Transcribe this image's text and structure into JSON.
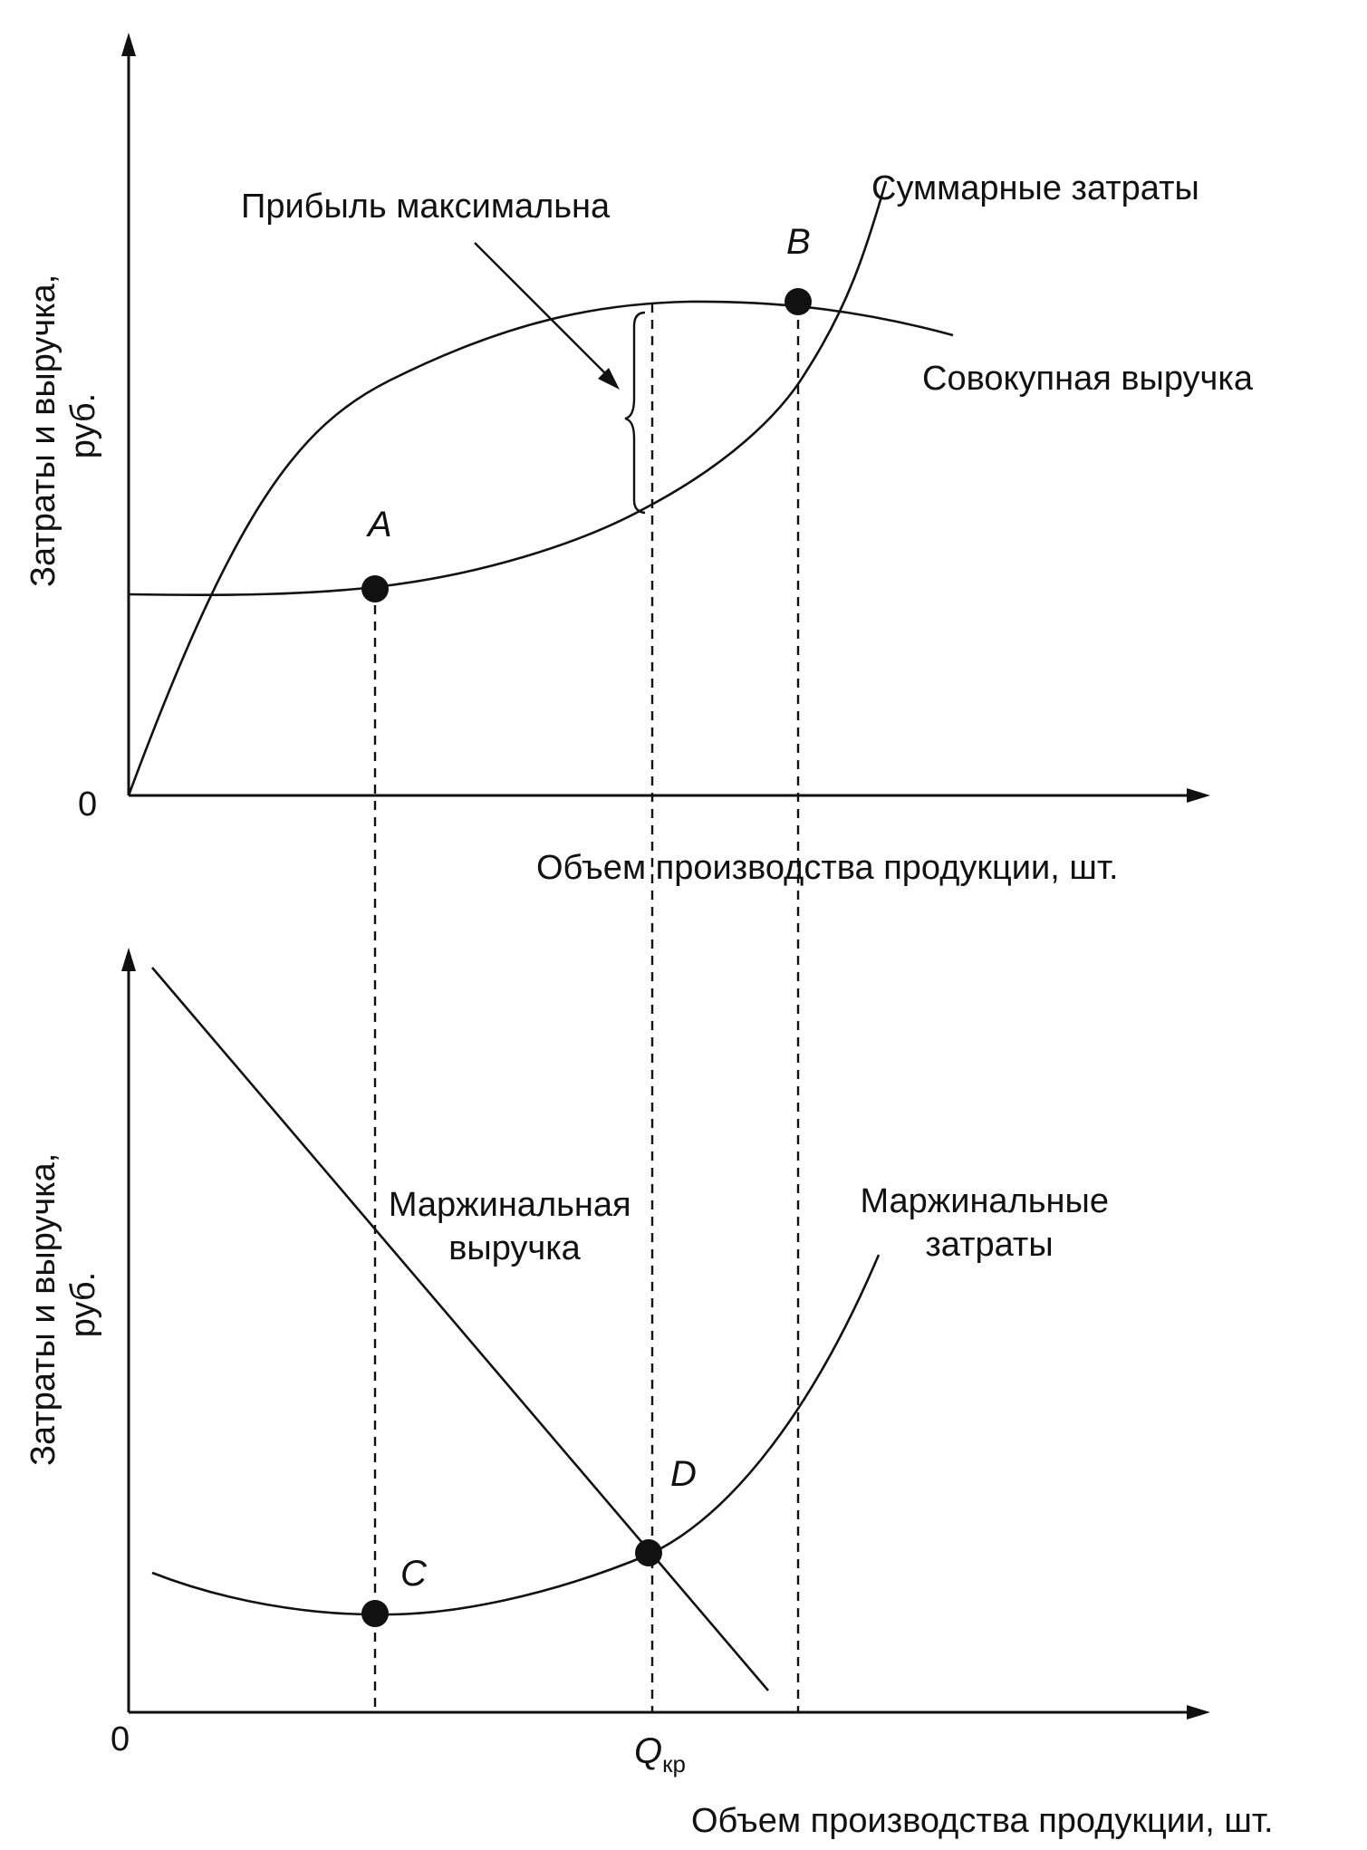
{
  "top_panel": {
    "y_axis_label_line1": "Затраты и выручка,",
    "y_axis_label_line2": "руб.",
    "x_axis_label": "Объем производства продукции, шт.",
    "origin_label": "0",
    "total_cost_label": "Суммарные затраты",
    "total_revenue_label": "Совокупная выручка",
    "max_profit_label": "Прибыль максимальна",
    "point_a_label": "A",
    "point_b_label": "B"
  },
  "bottom_panel": {
    "y_axis_label_line1": "Затраты и выручка,",
    "y_axis_label_line2": "руб.",
    "x_axis_label": "Объем производства продукции, шт.",
    "origin_label": "0",
    "marginal_revenue_label_line1": "Маржинальная",
    "marginal_revenue_label_line2": "выручка",
    "marginal_cost_label_line1": "Маржинальные",
    "marginal_cost_label_line2": "затраты",
    "point_c_label": "C",
    "point_d_label": "D",
    "q_critical_main": "Q",
    "q_critical_sub": "кр"
  },
  "colors": {
    "ink": "#111111",
    "background": "#ffffff"
  }
}
